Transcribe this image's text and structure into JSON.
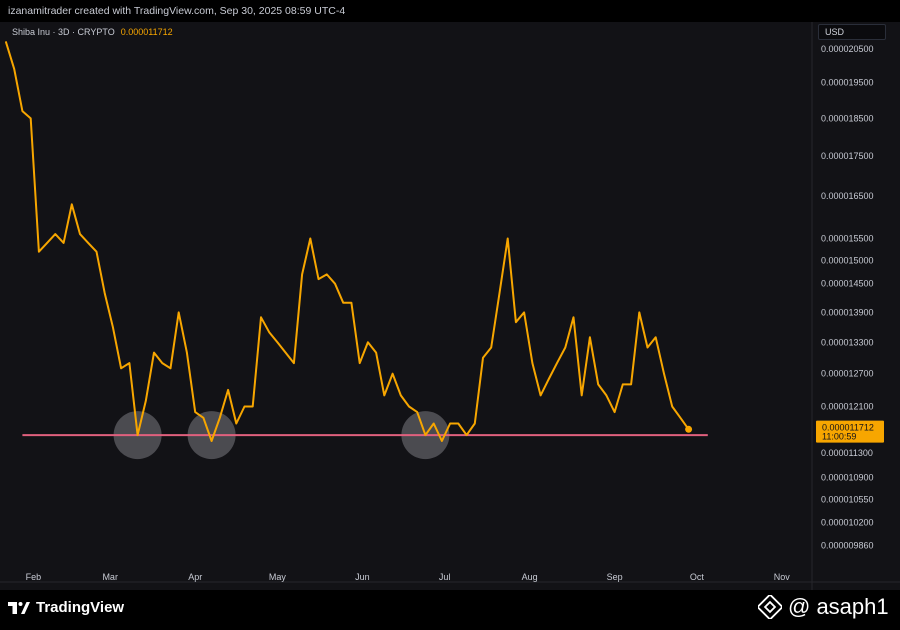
{
  "header": {
    "credit": "izanamitrader created with TradingView.com, Sep 30, 2025 08:59 UTC-4"
  },
  "legend": {
    "symbol": "Shiba Inu · 3D · CRYPTO",
    "price": "0.000011712"
  },
  "currency": "USD",
  "last_price_label": {
    "price": "0.000011712",
    "countdown": "11:00:59"
  },
  "footer": {
    "brand": "TradingView",
    "watermark": "@ asaph1"
  },
  "colors": {
    "line": "#f7a600",
    "support": "#e0607e",
    "background": "#121216"
  },
  "chart_data": {
    "type": "line",
    "scale": "log",
    "x_ticks": [
      "Feb",
      "Mar",
      "Apr",
      "May",
      "Jun",
      "Jul",
      "Aug",
      "Sep",
      "Oct",
      "Nov"
    ],
    "y_ticks": [
      "0.000020500",
      "0.000019500",
      "0.000018500",
      "0.000017500",
      "0.000016500",
      "0.000015500",
      "0.000015000",
      "0.000014500",
      "0.000013900",
      "0.000013300",
      "0.000012700",
      "0.000012100",
      "0.000011300",
      "0.000010900",
      "0.000010550",
      "0.000010200",
      "0.000009860"
    ],
    "ylim": [
      9.65e-06,
      2.12e-05
    ],
    "xlim": [
      "2025-01-22",
      "2025-11-12"
    ],
    "series": [
      {
        "x": [
          "2025-01-22",
          "2025-01-25",
          "2025-01-28",
          "2025-01-31",
          "2025-02-03",
          "2025-02-06",
          "2025-02-09",
          "2025-02-12",
          "2025-02-15",
          "2025-02-18",
          "2025-02-21",
          "2025-02-24",
          "2025-02-27",
          "2025-03-02",
          "2025-03-05",
          "2025-03-08",
          "2025-03-11",
          "2025-03-14",
          "2025-03-17",
          "2025-03-20",
          "2025-03-23",
          "2025-03-26",
          "2025-03-29",
          "2025-04-01",
          "2025-04-04",
          "2025-04-07",
          "2025-04-10",
          "2025-04-13",
          "2025-04-16",
          "2025-04-19",
          "2025-04-22",
          "2025-04-25",
          "2025-04-28",
          "2025-05-01",
          "2025-05-04",
          "2025-05-07",
          "2025-05-10",
          "2025-05-13",
          "2025-05-16",
          "2025-05-19",
          "2025-05-22",
          "2025-05-25",
          "2025-05-28",
          "2025-05-31",
          "2025-06-03",
          "2025-06-06",
          "2025-06-09",
          "2025-06-12",
          "2025-06-15",
          "2025-06-18",
          "2025-06-21",
          "2025-06-24",
          "2025-06-27",
          "2025-06-30",
          "2025-07-03",
          "2025-07-06",
          "2025-07-09",
          "2025-07-12",
          "2025-07-15",
          "2025-07-18",
          "2025-07-21",
          "2025-07-24",
          "2025-07-27",
          "2025-07-30",
          "2025-08-02",
          "2025-08-05",
          "2025-08-08",
          "2025-08-11",
          "2025-08-14",
          "2025-08-17",
          "2025-08-20",
          "2025-08-23",
          "2025-08-26",
          "2025-08-29",
          "2025-09-01",
          "2025-09-04",
          "2025-09-07",
          "2025-09-10",
          "2025-09-13",
          "2025-09-16",
          "2025-09-19",
          "2025-09-22",
          "2025-09-25",
          "2025-09-28"
        ],
        "y": [
          2.07e-05,
          1.99e-05,
          1.87e-05,
          1.85e-05,
          1.52e-05,
          1.54e-05,
          1.56e-05,
          1.54e-05,
          1.63e-05,
          1.56e-05,
          1.54e-05,
          1.52e-05,
          1.43e-05,
          1.36e-05,
          1.28e-05,
          1.29e-05,
          1.16e-05,
          1.22e-05,
          1.31e-05,
          1.29e-05,
          1.28e-05,
          1.39e-05,
          1.31e-05,
          1.2e-05,
          1.19e-05,
          1.15e-05,
          1.19e-05,
          1.24e-05,
          1.18e-05,
          1.21e-05,
          1.21e-05,
          1.38e-05,
          1.35e-05,
          1.33e-05,
          1.31e-05,
          1.29e-05,
          1.47e-05,
          1.55e-05,
          1.46e-05,
          1.47e-05,
          1.45e-05,
          1.41e-05,
          1.41e-05,
          1.29e-05,
          1.33e-05,
          1.31e-05,
          1.23e-05,
          1.27e-05,
          1.23e-05,
          1.21e-05,
          1.2e-05,
          1.16e-05,
          1.18e-05,
          1.15e-05,
          1.18e-05,
          1.18e-05,
          1.16e-05,
          1.18e-05,
          1.3e-05,
          1.32e-05,
          1.43e-05,
          1.55e-05,
          1.37e-05,
          1.39e-05,
          1.29e-05,
          1.23e-05,
          1.26e-05,
          1.29e-05,
          1.32e-05,
          1.38e-05,
          1.23e-05,
          1.34e-05,
          1.25e-05,
          1.23e-05,
          1.2e-05,
          1.25e-05,
          1.25e-05,
          1.39e-05,
          1.32e-05,
          1.34e-05,
          1.27e-05,
          1.21e-05,
          1.19e-05,
          1.17e-05
        ]
      }
    ],
    "annotations": {
      "support_level": 1.16e-05,
      "support_from": "2025-01-28",
      "support_to": "2025-10-05",
      "circled_lows": [
        "2025-03-11",
        "2025-04-07",
        "2025-06-24"
      ]
    }
  }
}
